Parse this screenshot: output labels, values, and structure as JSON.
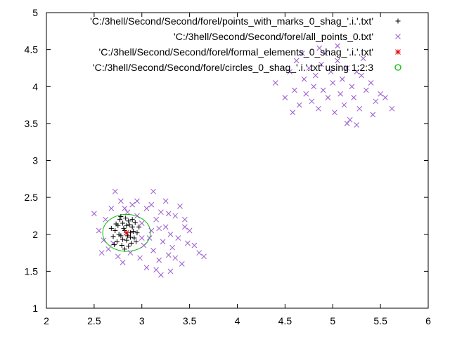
{
  "chart_data": {
    "type": "scatter",
    "title": "",
    "xlabel": "",
    "ylabel": "",
    "xlim": [
      2,
      6
    ],
    "ylim": [
      1,
      5
    ],
    "xticks": [
      "2",
      "2.5",
      "3",
      "3.5",
      "4",
      "4.5",
      "5",
      "5.5",
      "6"
    ],
    "yticks": [
      "1",
      "1.5",
      "2",
      "2.5",
      "3",
      "3.5",
      "4",
      "4.5",
      "5"
    ],
    "grid": false,
    "legend_position": "top-right",
    "series": [
      {
        "name": "'C:/3hell/Second/Second/forel/points_with_marks_0_shag_'.i.'.txt'",
        "marker": "plus",
        "color": "#000000",
        "points": [
          [
            2.72,
            2.05
          ],
          [
            2.75,
            2.12
          ],
          [
            2.78,
            1.98
          ],
          [
            2.8,
            2.15
          ],
          [
            2.82,
            2.05
          ],
          [
            2.84,
            1.92
          ],
          [
            2.86,
            2.18
          ],
          [
            2.88,
            2.02
          ],
          [
            2.9,
            2.1
          ],
          [
            2.92,
            1.95
          ],
          [
            2.74,
            1.9
          ],
          [
            2.77,
            2.2
          ],
          [
            2.79,
            1.85
          ],
          [
            2.81,
            2.08
          ],
          [
            2.83,
            2.22
          ],
          [
            2.85,
            1.98
          ],
          [
            2.87,
            2.13
          ],
          [
            2.89,
            1.88
          ],
          [
            2.91,
            2.04
          ],
          [
            2.93,
            2.16
          ],
          [
            2.76,
            2.0
          ],
          [
            2.8,
            1.93
          ],
          [
            2.84,
            2.12
          ],
          [
            2.88,
            1.96
          ],
          [
            2.95,
            2.02
          ],
          [
            2.7,
            1.97
          ],
          [
            2.73,
            2.14
          ],
          [
            2.9,
            2.2
          ],
          [
            2.94,
            1.9
          ],
          [
            2.68,
            2.08
          ],
          [
            2.71,
            1.86
          ],
          [
            2.86,
            1.84
          ],
          [
            2.97,
            2.1
          ],
          [
            2.82,
            1.8
          ],
          [
            2.78,
            2.24
          ]
        ]
      },
      {
        "name": "'C:/3hell/Second/Second/forel/all_points_0.txt'",
        "marker": "x",
        "color": "#9b59d0",
        "points": [
          [
            2.5,
            2.28
          ],
          [
            2.55,
            2.05
          ],
          [
            2.6,
            1.92
          ],
          [
            2.62,
            2.2
          ],
          [
            2.65,
            1.8
          ],
          [
            2.68,
            2.35
          ],
          [
            2.72,
            2.58
          ],
          [
            2.75,
            1.7
          ],
          [
            2.78,
            2.45
          ],
          [
            2.8,
            1.62
          ],
          [
            2.85,
            2.3
          ],
          [
            2.88,
            1.75
          ],
          [
            2.9,
            2.4
          ],
          [
            2.95,
            2.25
          ],
          [
            2.98,
            1.68
          ],
          [
            3.0,
            2.15
          ],
          [
            3.02,
            1.85
          ],
          [
            3.05,
            2.35
          ],
          [
            3.08,
            1.95
          ],
          [
            3.1,
            2.05
          ],
          [
            3.12,
            1.78
          ],
          [
            3.15,
            2.2
          ],
          [
            3.18,
            1.65
          ],
          [
            3.2,
            2.3
          ],
          [
            3.22,
            1.9
          ],
          [
            3.25,
            2.1
          ],
          [
            3.28,
            1.72
          ],
          [
            3.3,
            2.0
          ],
          [
            3.32,
            1.82
          ],
          [
            3.35,
            2.25
          ],
          [
            3.38,
            1.95
          ],
          [
            3.4,
            2.38
          ],
          [
            3.42,
            1.6
          ],
          [
            3.45,
            2.1
          ],
          [
            3.48,
            1.88
          ],
          [
            3.5,
            2.05
          ],
          [
            3.55,
            1.85
          ],
          [
            3.6,
            1.75
          ],
          [
            3.65,
            1.7
          ],
          [
            3.12,
            2.58
          ],
          [
            3.2,
            1.45
          ],
          [
            3.3,
            1.5
          ],
          [
            2.95,
            2.45
          ],
          [
            3.05,
            1.55
          ],
          [
            3.15,
            1.52
          ],
          [
            2.58,
            1.75
          ],
          [
            3.0,
            1.95
          ],
          [
            3.1,
            2.4
          ],
          [
            3.25,
            2.45
          ],
          [
            3.35,
            1.68
          ],
          [
            2.7,
            1.88
          ],
          [
            2.82,
            2.35
          ],
          [
            3.18,
            2.08
          ],
          [
            3.28,
            2.28
          ],
          [
            3.45,
            2.2
          ],
          [
            4.4,
            4.05
          ],
          [
            4.5,
            3.85
          ],
          [
            4.55,
            4.2
          ],
          [
            4.6,
            3.95
          ],
          [
            4.62,
            4.35
          ],
          [
            4.65,
            3.75
          ],
          [
            4.7,
            4.1
          ],
          [
            4.72,
            3.9
          ],
          [
            4.75,
            4.25
          ],
          [
            4.78,
            3.8
          ],
          [
            4.8,
            4.0
          ],
          [
            4.82,
            4.15
          ],
          [
            4.85,
            3.7
          ],
          [
            4.88,
            4.3
          ],
          [
            4.9,
            3.95
          ],
          [
            4.92,
            4.45
          ],
          [
            4.95,
            3.85
          ],
          [
            4.98,
            4.2
          ],
          [
            5.0,
            4.05
          ],
          [
            5.02,
            3.65
          ],
          [
            5.05,
            4.35
          ],
          [
            5.08,
            3.9
          ],
          [
            5.1,
            4.1
          ],
          [
            5.12,
            3.75
          ],
          [
            5.15,
            4.25
          ],
          [
            5.18,
            3.55
          ],
          [
            5.2,
            4.0
          ],
          [
            5.22,
            3.85
          ],
          [
            5.25,
            4.2
          ],
          [
            5.28,
            3.7
          ],
          [
            5.3,
            4.15
          ],
          [
            5.35,
            3.95
          ],
          [
            5.4,
            4.05
          ],
          [
            5.45,
            3.8
          ],
          [
            5.5,
            3.9
          ],
          [
            5.55,
            3.85
          ],
          [
            5.62,
            3.7
          ],
          [
            5.05,
            4.55
          ],
          [
            5.15,
            3.5
          ],
          [
            5.25,
            3.48
          ],
          [
            4.68,
            4.45
          ],
          [
            4.58,
            3.65
          ],
          [
            4.86,
            4.52
          ],
          [
            5.32,
            4.38
          ],
          [
            5.42,
            3.62
          ]
        ]
      },
      {
        "name": "'C:/3hell/Second/Second/forel/formal_elements_0_shag_'.i.'.txt'",
        "marker": "star",
        "color": "#e00000",
        "points": [
          [
            2.84,
            2.02
          ]
        ]
      },
      {
        "name": "'C:/3hell/Second/Second/forel/circles_0_shag_'.i.'.txt' using 1:2:3",
        "marker": "circle",
        "color": "#00c000",
        "circles": [
          [
            2.84,
            2.02,
            0.25
          ]
        ]
      }
    ]
  }
}
